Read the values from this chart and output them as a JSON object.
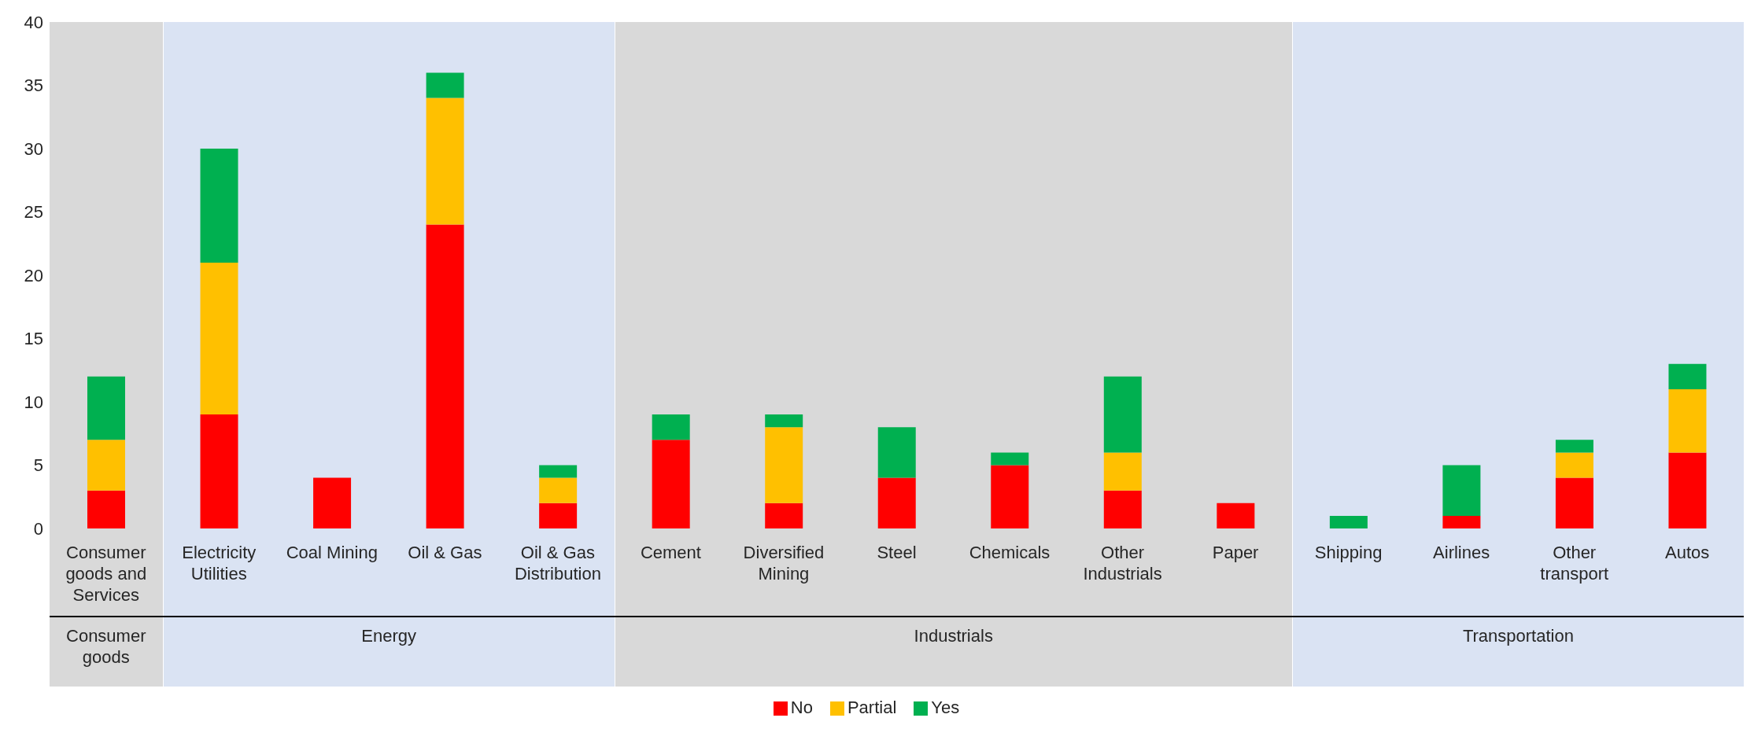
{
  "chart_data": {
    "type": "bar",
    "stacked": true,
    "categories": [
      "Consumer goods and Services",
      "Electricity Utilities",
      "Coal Mining",
      "Oil & Gas",
      "Oil & Gas Distribution",
      "Cement",
      "Diversified Mining",
      "Steel",
      "Chemicals",
      "Other Industrials",
      "Paper",
      "Shipping",
      "Airlines",
      "Other transport",
      "Autos"
    ],
    "series": [
      {
        "name": "No",
        "color": "#ff0000",
        "values": [
          3,
          9,
          4,
          24,
          2,
          7,
          2,
          4,
          5,
          3,
          2,
          0,
          1,
          4,
          6
        ]
      },
      {
        "name": "Partial",
        "color": "#ffc000",
        "values": [
          4,
          12,
          0,
          10,
          2,
          0,
          6,
          0,
          0,
          3,
          0,
          0,
          0,
          2,
          5
        ]
      },
      {
        "name": "Yes",
        "color": "#00b050",
        "values": [
          5,
          9,
          0,
          2,
          1,
          2,
          1,
          4,
          1,
          6,
          0,
          1,
          4,
          1,
          2
        ]
      }
    ],
    "ylim": [
      0,
      40
    ],
    "yticks": [
      0,
      5,
      10,
      15,
      20,
      25,
      30,
      35,
      40
    ],
    "grid": false,
    "legend": "bottom",
    "bands": [
      {
        "axis": "x",
        "from": "Consumer goods and Services",
        "to": "Consumer goods and Services",
        "label": "Consumer goods",
        "color": "#d9d9d9"
      },
      {
        "axis": "x",
        "from": "Electricity Utilities",
        "to": "Oil & Gas Distribution",
        "label": "Energy",
        "color": "#dae3f3"
      },
      {
        "axis": "x",
        "from": "Cement",
        "to": "Paper",
        "label": "Industrials",
        "color": "#d9d9d9"
      },
      {
        "axis": "x",
        "from": "Shipping",
        "to": "Autos",
        "label": "Transportation",
        "color": "#dae3f3"
      }
    ]
  }
}
